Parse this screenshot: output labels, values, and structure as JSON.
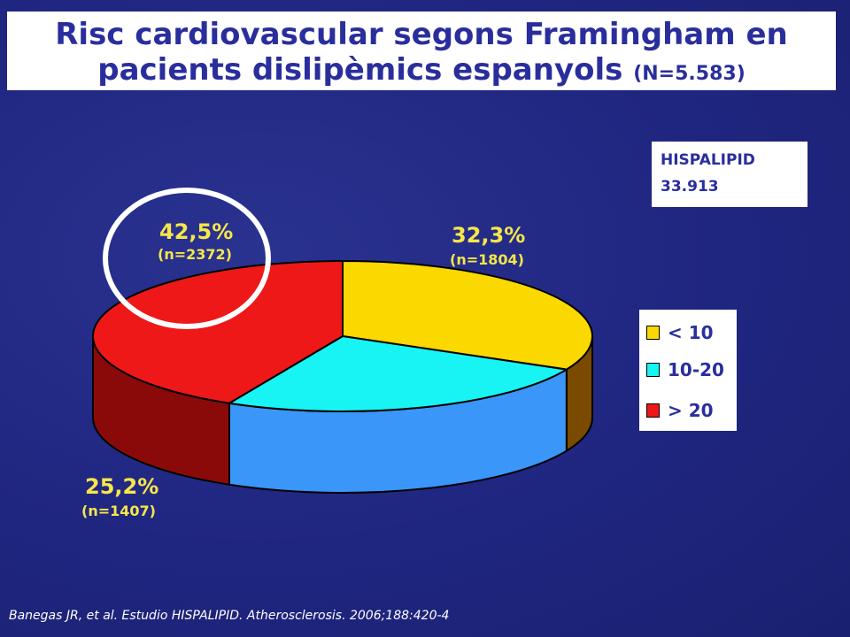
{
  "title": {
    "line1": "Risc cardiovascular segons Framingham en",
    "line2": "pacients dislipèmics espanyols",
    "n_label": "(N=5.583)"
  },
  "hispalipid": {
    "label": "HISPALIPID",
    "value": "33.913"
  },
  "chart_data": {
    "type": "pie",
    "title": "Risc cardiovascular segons Framingham en pacients dislipèmics espanyols (N=5.583)",
    "total_n": 5583,
    "legend_position": "right",
    "slices": [
      {
        "category": "< 10",
        "percent": 32.3,
        "n": 1804,
        "label": "32,3%",
        "n_label": "(n=1804)",
        "color": "#fbd800",
        "side_color": "#7a4a00"
      },
      {
        "category": "10-20",
        "percent": 25.2,
        "n": 1407,
        "label": "25,2%",
        "n_label": "(n=1407)",
        "color": "#18f4f4",
        "side_color": "#3a96f8"
      },
      {
        "category": "> 20",
        "percent": 42.5,
        "n": 2372,
        "label": "42,5%",
        "n_label": "(n=2372)",
        "color": "#ee1818",
        "side_color": "#8a0a0a"
      }
    ],
    "highlight": "> 20"
  },
  "legend": [
    {
      "label": "< 10",
      "color": "#fbd800"
    },
    {
      "label": "10-20",
      "color": "#18f4f4"
    },
    {
      "label": "> 20",
      "color": "#ee1818"
    }
  ],
  "footnote": "Banegas JR, et al. Estudio HISPALIPID. Atherosclerosis. 2006;188:420-4"
}
